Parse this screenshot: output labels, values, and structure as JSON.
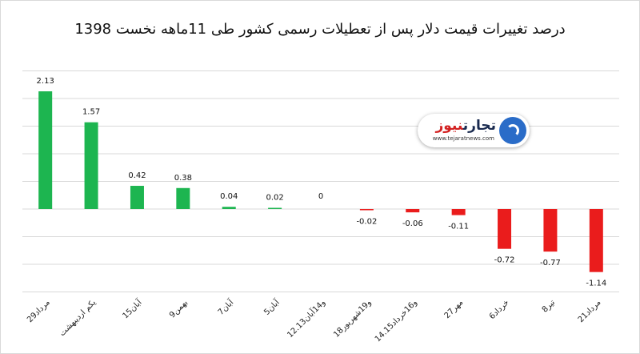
{
  "logo": {
    "brand_part1": "تجارت",
    "brand_part2": "نیوز",
    "url": "www.tejaratnews.com"
  },
  "chart_data": {
    "type": "bar",
    "title": "درصد تغییرات قیمت دلار پس از تعطیلات رسمی کشور طی 11ماهه نخست 1398",
    "categories": [
      "29مرداد",
      "یکم اردیبهشت",
      "15آبان",
      "9بهمن",
      "7آبان",
      "5آبان",
      "12.13و14آبان",
      "18و19شهریور",
      "14.15و16خرداد",
      "27مهر",
      "6خرداد",
      "8تیر",
      "21مرداد"
    ],
    "values": [
      2.13,
      1.57,
      0.42,
      0.38,
      0.04,
      0.02,
      0,
      -0.02,
      -0.06,
      -0.11,
      -0.72,
      -0.77,
      -1.14
    ],
    "value_labels": [
      "2.13",
      "1.57",
      "0.42",
      "0.38",
      "0.04",
      "0.02",
      "0",
      "-0.02",
      "-0.06",
      "-0.11",
      "-0.72",
      "-0.77",
      "-1.14"
    ],
    "ylim": [
      -1.5,
      2.5
    ],
    "grid": true,
    "colors": {
      "positive": "#1db550",
      "negative": "#ea1c1c",
      "grid": "#d9d9d9"
    }
  }
}
